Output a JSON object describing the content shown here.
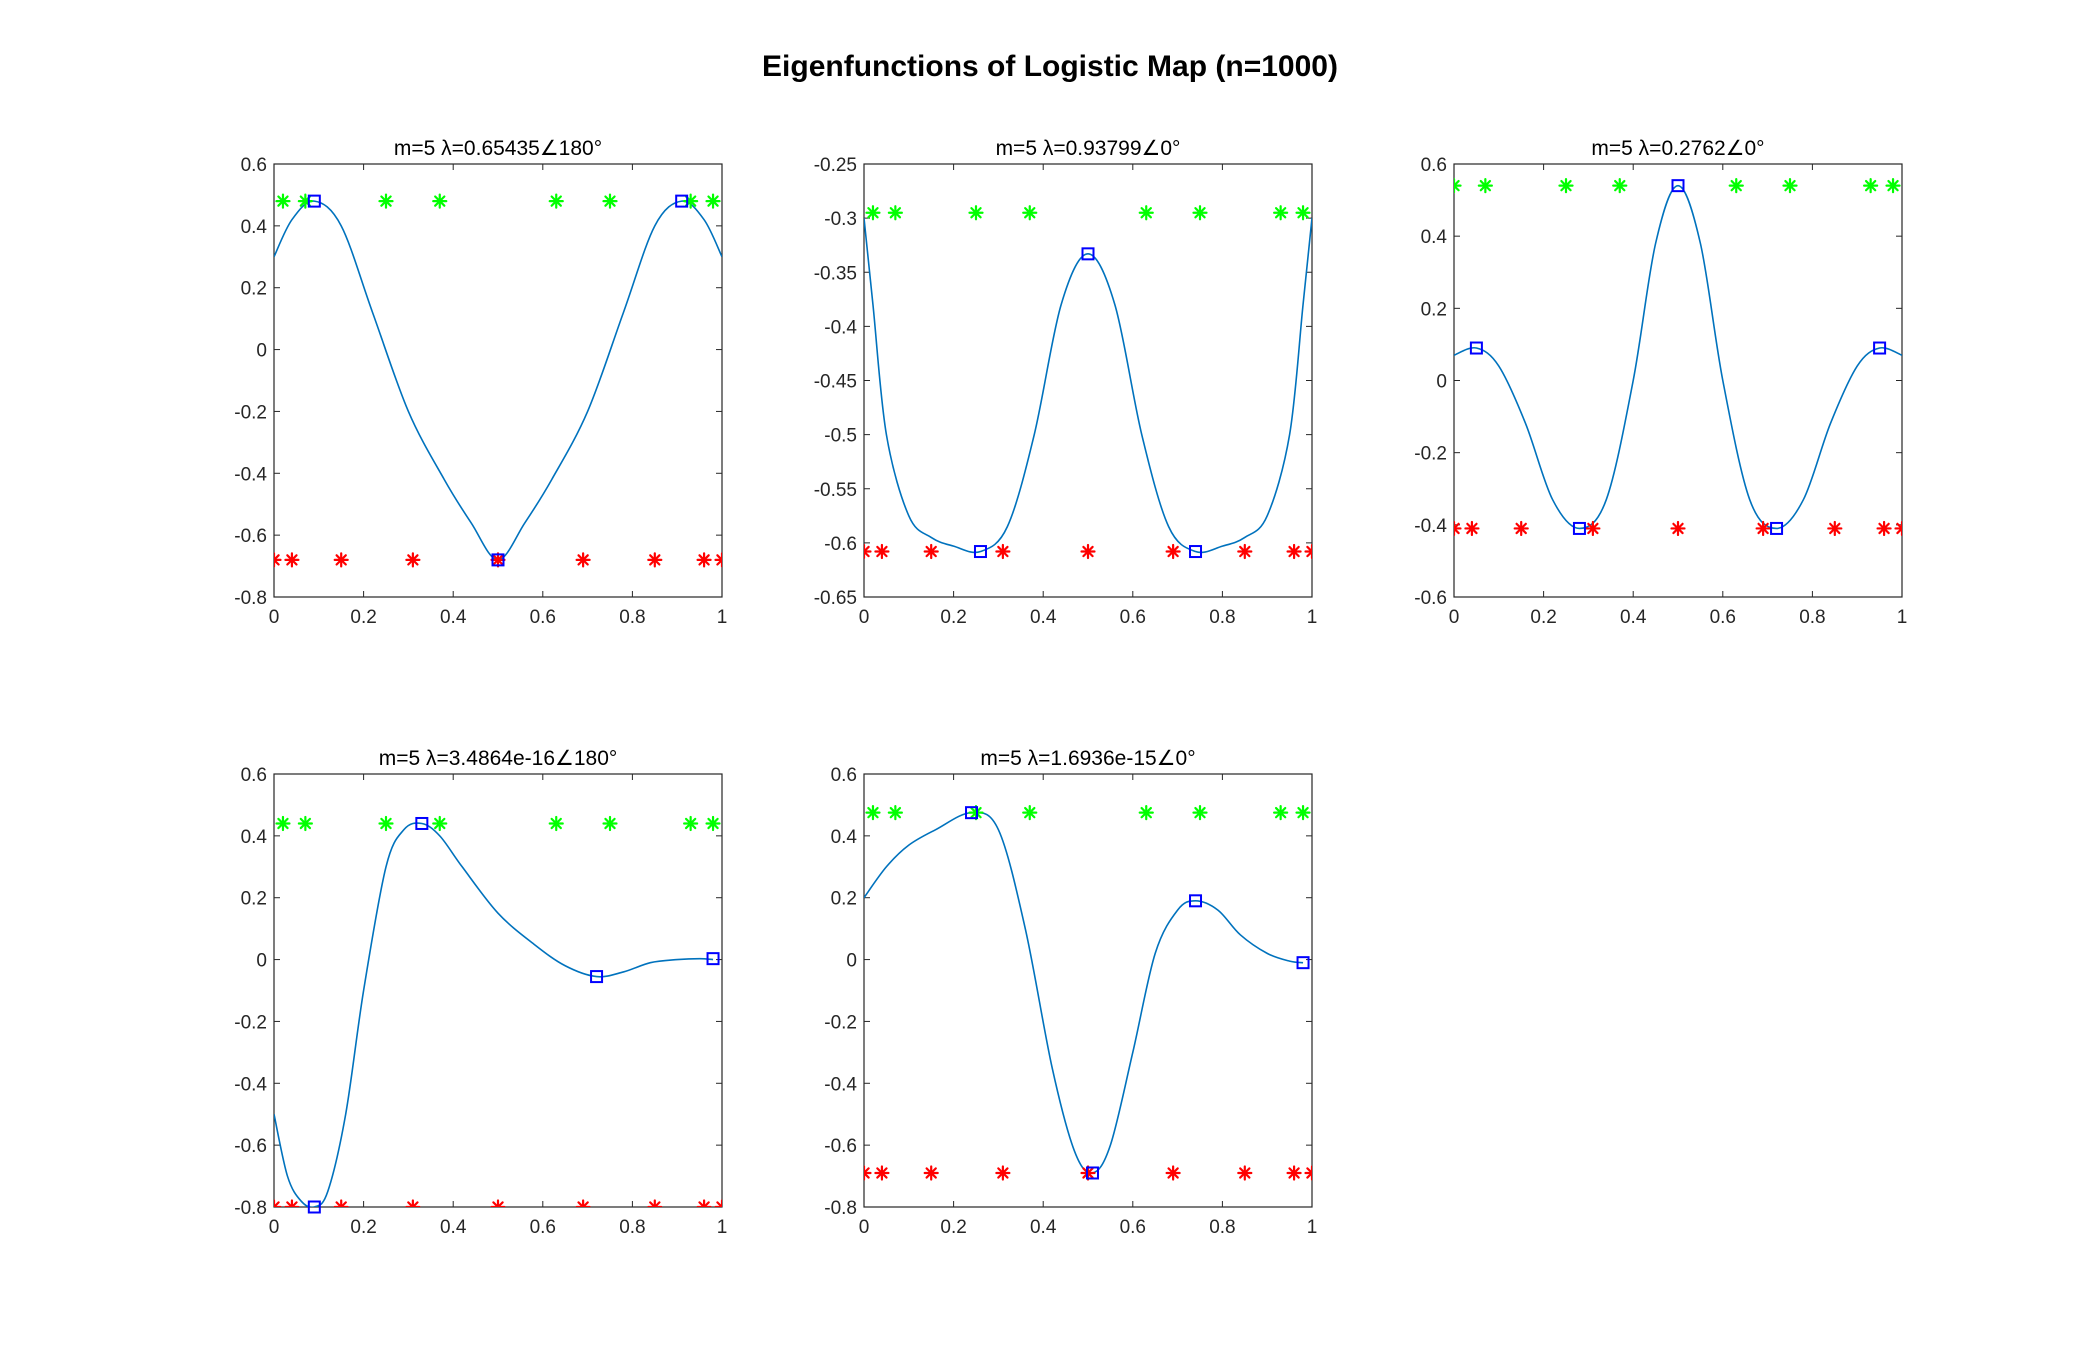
{
  "figure_title": "Eigenfunctions of Logistic Map (n=1000)",
  "colors": {
    "curve": "#0072BD",
    "square_marker": "#0000FF",
    "green_star": "#00FF00",
    "red_star": "#FF0000",
    "axis": "#262626"
  },
  "chart_data": [
    {
      "type": "line",
      "title": "m=5 λ=0.65435∠180°",
      "xlim": [
        0,
        1
      ],
      "ylim": [
        -0.8,
        0.6
      ],
      "xticks": [
        0,
        0.2,
        0.4,
        0.6,
        0.8,
        1
      ],
      "xtick_labels": [
        "0",
        "0.2",
        "0.4",
        "0.6",
        "0.8",
        "1"
      ],
      "yticks": [
        -0.8,
        -0.6,
        -0.4,
        -0.2,
        0,
        0.2,
        0.4,
        0.6
      ],
      "ytick_labels": [
        "-0.8",
        "-0.6",
        "-0.4",
        "-0.2",
        "0",
        "0.2",
        "0.4",
        "0.6"
      ],
      "curve": {
        "x": [
          0,
          0.04,
          0.09,
          0.15,
          0.22,
          0.3,
          0.38,
          0.44,
          0.5,
          0.56,
          0.62,
          0.7,
          0.78,
          0.85,
          0.91,
          0.96,
          1
        ],
        "y": [
          0.3,
          0.42,
          0.48,
          0.4,
          0.12,
          -0.2,
          -0.42,
          -0.56,
          -0.68,
          -0.56,
          -0.42,
          -0.2,
          0.12,
          0.4,
          0.48,
          0.42,
          0.3
        ]
      },
      "squares": {
        "x": [
          0.09,
          0.5,
          0.91
        ],
        "y": [
          0.48,
          -0.68,
          0.48
        ]
      },
      "green_stars": {
        "x": [
          0.02,
          0.07,
          0.25,
          0.37,
          0.63,
          0.75,
          0.93,
          0.98
        ],
        "y": 0.48
      },
      "red_stars": {
        "x": [
          0,
          0.04,
          0.15,
          0.31,
          0.5,
          0.69,
          0.85,
          0.96,
          1
        ],
        "y": -0.68
      }
    },
    {
      "type": "line",
      "title": "m=5 λ=0.93799∠0°",
      "xlim": [
        0,
        1
      ],
      "ylim": [
        -0.65,
        -0.25
      ],
      "xticks": [
        0,
        0.2,
        0.4,
        0.6,
        0.8,
        1
      ],
      "xtick_labels": [
        "0",
        "0.2",
        "0.4",
        "0.6",
        "0.8",
        "1"
      ],
      "yticks": [
        -0.65,
        -0.6,
        -0.55,
        -0.5,
        -0.45,
        -0.4,
        -0.35,
        -0.3,
        -0.25
      ],
      "ytick_labels": [
        "-0.65",
        "-0.6",
        "-0.55",
        "-0.5",
        "-0.45",
        "-0.4",
        "-0.35",
        "-0.3",
        "-0.25"
      ],
      "curve": {
        "x": [
          0,
          0.02,
          0.05,
          0.1,
          0.15,
          0.2,
          0.26,
          0.32,
          0.38,
          0.44,
          0.5,
          0.56,
          0.62,
          0.68,
          0.74,
          0.8,
          0.85,
          0.9,
          0.95,
          0.98,
          1
        ],
        "y": [
          -0.3,
          -0.38,
          -0.5,
          -0.575,
          -0.595,
          -0.603,
          -0.608,
          -0.585,
          -0.5,
          -0.38,
          -0.333,
          -0.38,
          -0.5,
          -0.585,
          -0.608,
          -0.603,
          -0.595,
          -0.575,
          -0.5,
          -0.38,
          -0.3
        ]
      },
      "squares": {
        "x": [
          0.26,
          0.5,
          0.74
        ],
        "y": [
          -0.608,
          -0.333,
          -0.608
        ]
      },
      "green_stars": {
        "x": [
          0.02,
          0.07,
          0.25,
          0.37,
          0.63,
          0.75,
          0.93,
          0.98
        ],
        "y": -0.295
      },
      "red_stars": {
        "x": [
          0,
          0.04,
          0.15,
          0.31,
          0.5,
          0.69,
          0.85,
          0.96,
          1
        ],
        "y": -0.608
      }
    },
    {
      "type": "line",
      "title": "m=5 λ=0.2762∠0°",
      "xlim": [
        0,
        1
      ],
      "ylim": [
        -0.6,
        0.6
      ],
      "xticks": [
        0,
        0.2,
        0.4,
        0.6,
        0.8,
        1
      ],
      "xtick_labels": [
        "0",
        "0.2",
        "0.4",
        "0.6",
        "0.8",
        "1"
      ],
      "yticks": [
        -0.6,
        -0.4,
        -0.2,
        0,
        0.2,
        0.4,
        0.6
      ],
      "ytick_labels": [
        "-0.6",
        "-0.4",
        "-0.2",
        "0",
        "0.2",
        "0.4",
        "0.6"
      ],
      "curve": {
        "x": [
          0,
          0.05,
          0.1,
          0.16,
          0.22,
          0.28,
          0.34,
          0.4,
          0.45,
          0.5,
          0.55,
          0.6,
          0.66,
          0.72,
          0.78,
          0.84,
          0.9,
          0.95,
          1
        ],
        "y": [
          0.07,
          0.09,
          0.04,
          -0.12,
          -0.33,
          -0.41,
          -0.33,
          0.0,
          0.38,
          0.54,
          0.38,
          0.0,
          -0.33,
          -0.41,
          -0.33,
          -0.12,
          0.04,
          0.09,
          0.07
        ]
      },
      "squares": {
        "x": [
          0.05,
          0.28,
          0.5,
          0.72,
          0.95
        ],
        "y": [
          0.09,
          -0.41,
          0.54,
          -0.41,
          0.09
        ]
      },
      "green_stars": {
        "x": [
          0,
          0.07,
          0.25,
          0.37,
          0.63,
          0.75,
          0.93,
          0.98
        ],
        "y": 0.54
      },
      "red_stars": {
        "x": [
          0,
          0.04,
          0.15,
          0.31,
          0.5,
          0.69,
          0.85,
          0.96,
          1
        ],
        "y": -0.41
      }
    },
    {
      "type": "line",
      "title": "m=5 λ=3.4864e-16∠180°",
      "xlim": [
        0,
        1
      ],
      "ylim": [
        -0.8,
        0.6
      ],
      "xticks": [
        0,
        0.2,
        0.4,
        0.6,
        0.8,
        1
      ],
      "xtick_labels": [
        "0",
        "0.2",
        "0.4",
        "0.6",
        "0.8",
        "1"
      ],
      "yticks": [
        -0.8,
        -0.6,
        -0.4,
        -0.2,
        0,
        0.2,
        0.4,
        0.6
      ],
      "ytick_labels": [
        "-0.8",
        "-0.6",
        "-0.4",
        "-0.2",
        "0",
        "0.2",
        "0.4",
        "0.6"
      ],
      "curve": {
        "x": [
          0,
          0.03,
          0.06,
          0.09,
          0.12,
          0.16,
          0.2,
          0.25,
          0.29,
          0.33,
          0.37,
          0.42,
          0.5,
          0.58,
          0.65,
          0.72,
          0.78,
          0.84,
          0.9,
          0.95,
          0.98
        ],
        "y": [
          -0.5,
          -0.7,
          -0.78,
          -0.8,
          -0.75,
          -0.5,
          -0.1,
          0.3,
          0.42,
          0.44,
          0.4,
          0.3,
          0.15,
          0.05,
          -0.02,
          -0.055,
          -0.04,
          -0.01,
          0.0,
          0.003,
          0.0
        ]
      },
      "squares": {
        "x": [
          0.09,
          0.33,
          0.72,
          0.98
        ],
        "y": [
          -0.8,
          0.44,
          -0.055,
          0.003
        ]
      },
      "green_stars": {
        "x": [
          0.02,
          0.07,
          0.25,
          0.37,
          0.63,
          0.75,
          0.93,
          0.98
        ],
        "y": 0.44
      },
      "red_stars": {
        "x": [
          0,
          0.04,
          0.15,
          0.31,
          0.5,
          0.69,
          0.85,
          0.96,
          1
        ],
        "y": -0.8
      }
    },
    {
      "type": "line",
      "title": "m=5 λ=1.6936e-15∠0°",
      "xlim": [
        0,
        1
      ],
      "ylim": [
        -0.8,
        0.6
      ],
      "xticks": [
        0,
        0.2,
        0.4,
        0.6,
        0.8,
        1
      ],
      "xtick_labels": [
        "0",
        "0.2",
        "0.4",
        "0.6",
        "0.8",
        "1"
      ],
      "yticks": [
        -0.8,
        -0.6,
        -0.4,
        -0.2,
        0,
        0.2,
        0.4,
        0.6
      ],
      "ytick_labels": [
        "-0.8",
        "-0.6",
        "-0.4",
        "-0.2",
        "0",
        "0.2",
        "0.4",
        "0.6"
      ],
      "curve": {
        "x": [
          0,
          0.05,
          0.1,
          0.16,
          0.24,
          0.3,
          0.36,
          0.42,
          0.47,
          0.51,
          0.55,
          0.6,
          0.65,
          0.7,
          0.74,
          0.79,
          0.84,
          0.9,
          0.95,
          0.98
        ],
        "y": [
          0.2,
          0.3,
          0.37,
          0.42,
          0.475,
          0.42,
          0.1,
          -0.35,
          -0.62,
          -0.69,
          -0.6,
          -0.3,
          0.02,
          0.16,
          0.19,
          0.16,
          0.08,
          0.02,
          -0.005,
          -0.01
        ]
      },
      "squares": {
        "x": [
          0.24,
          0.51,
          0.74,
          0.98
        ],
        "y": [
          0.475,
          -0.69,
          0.19,
          -0.01
        ]
      },
      "green_stars": {
        "x": [
          0.02,
          0.07,
          0.25,
          0.37,
          0.63,
          0.75,
          0.93,
          0.98
        ],
        "y": 0.475
      },
      "red_stars": {
        "x": [
          0,
          0.04,
          0.15,
          0.31,
          0.5,
          0.69,
          0.85,
          0.96,
          1
        ],
        "y": -0.69
      }
    }
  ]
}
